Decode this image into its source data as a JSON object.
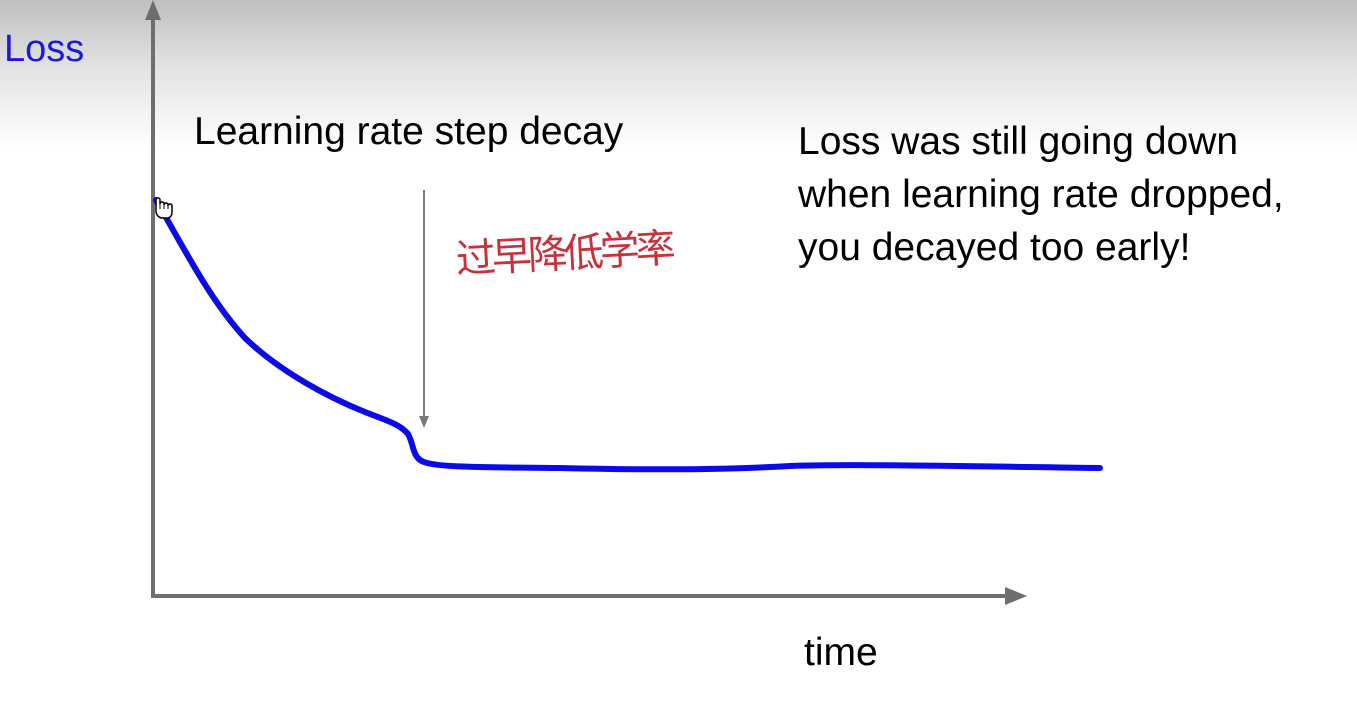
{
  "diagram": {
    "y_axis_label": "Loss",
    "x_axis_label": "time",
    "annotation": "Learning rate step decay",
    "note_lines": [
      "Loss was still going down",
      "when learning rate dropped,",
      "you decayed too early!"
    ],
    "handwritten_note": "过早降低学率",
    "watermark": "",
    "colors": {
      "curve": "#0b0be8",
      "axes": "#6e6e6e",
      "loss_label": "#1a1adb",
      "handwriting": "#c8323a"
    },
    "icons": [
      "hand-cursor-icon"
    ]
  }
}
